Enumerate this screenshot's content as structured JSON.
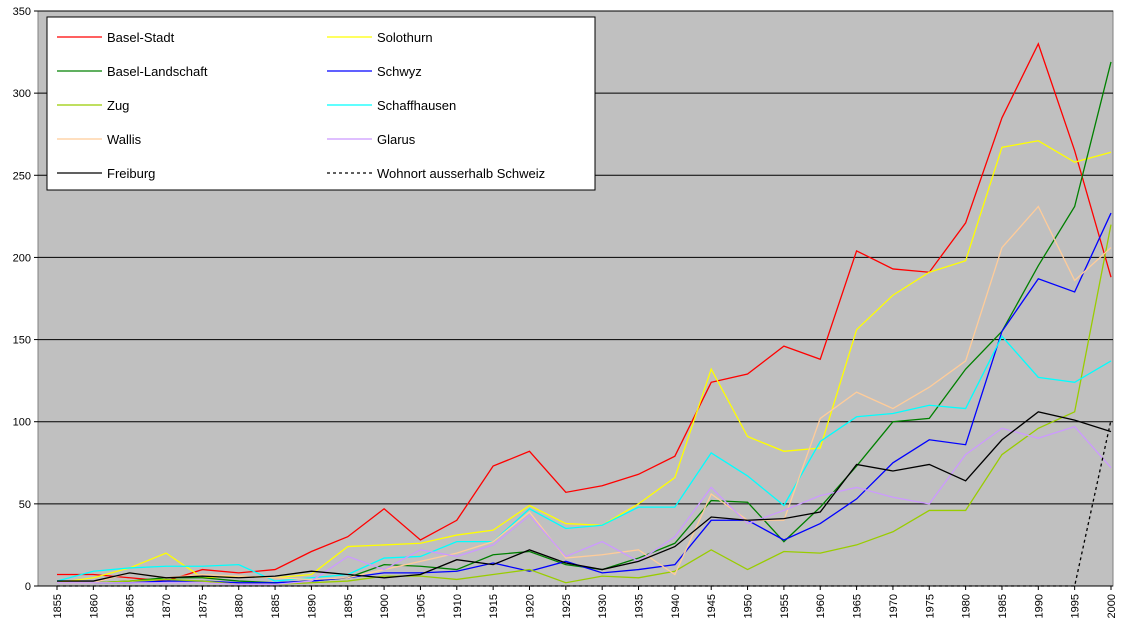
{
  "chart_data": {
    "type": "line",
    "categories": [
      "1855",
      "1860",
      "1865",
      "1870",
      "1875",
      "1880",
      "1885",
      "1890",
      "1895",
      "1900",
      "1905",
      "1910",
      "1915",
      "1920",
      "1925",
      "1930",
      "1935",
      "1940",
      "1945",
      "1950",
      "1955",
      "1960",
      "1965",
      "1970",
      "1975",
      "1980",
      "1985",
      "1990",
      "1995",
      "2000"
    ],
    "ylim": [
      0,
      350
    ],
    "yticks": [
      0,
      50,
      100,
      150,
      200,
      250,
      300,
      350
    ],
    "grid": true,
    "legend": "top-left",
    "series": [
      {
        "name": "Basel-Stadt",
        "color": "#ff0000",
        "values": [
          7,
          7,
          5,
          3,
          10,
          8,
          10,
          21,
          30,
          47,
          28,
          40,
          73,
          82,
          57,
          61,
          68,
          79,
          124,
          129,
          146,
          138,
          204,
          193,
          191,
          221,
          285,
          330,
          265,
          188
        ]
      },
      {
        "name": "Solothurn",
        "color": "#ffff00",
        "values": [
          2,
          5,
          11,
          20,
          5,
          6,
          5,
          7,
          24,
          25,
          26,
          31,
          34,
          49,
          38,
          37,
          50,
          66,
          132,
          91,
          82,
          84,
          156,
          177,
          191,
          198,
          267,
          271,
          258,
          264
        ]
      },
      {
        "name": "Basel-Landschaft",
        "color": "#008000",
        "values": [
          2,
          2,
          3,
          5,
          5,
          3,
          2,
          3,
          5,
          13,
          12,
          10,
          19,
          21,
          13,
          10,
          17,
          26,
          52,
          51,
          27,
          48,
          73,
          100,
          102,
          132,
          155,
          195,
          231,
          319
        ]
      },
      {
        "name": "Schwyz",
        "color": "#0000ff",
        "values": [
          2,
          2,
          2,
          3,
          3,
          2,
          2,
          3,
          5,
          8,
          8,
          9,
          14,
          9,
          15,
          8,
          10,
          13,
          40,
          40,
          28,
          38,
          53,
          75,
          89,
          86,
          155,
          187,
          179,
          227
        ]
      },
      {
        "name": "Zug",
        "color": "#99cc00",
        "values": [
          2,
          2,
          3,
          4,
          3,
          1,
          1,
          2,
          3,
          6,
          6,
          4,
          7,
          10,
          2,
          6,
          5,
          9,
          22,
          10,
          21,
          20,
          25,
          33,
          46,
          46,
          80,
          96,
          106,
          220
        ]
      },
      {
        "name": "Schaffhausen",
        "color": "#00ffff",
        "values": [
          3,
          9,
          11,
          12,
          12,
          13,
          3,
          5,
          7,
          17,
          18,
          27,
          27,
          47,
          35,
          37,
          48,
          48,
          81,
          67,
          49,
          88,
          103,
          105,
          110,
          108,
          152,
          127,
          124,
          137
        ]
      },
      {
        "name": "Wallis",
        "color": "#ffcc99",
        "values": [
          2,
          2,
          8,
          5,
          7,
          6,
          5,
          4,
          5,
          10,
          15,
          20,
          27,
          45,
          17,
          19,
          22,
          7,
          56,
          40,
          40,
          102,
          118,
          108,
          121,
          137,
          206,
          231,
          186,
          206
        ]
      },
      {
        "name": "Glarus",
        "color": "#cc99ff",
        "values": [
          2,
          2,
          2,
          2,
          2,
          1,
          1,
          3,
          18,
          10,
          22,
          18,
          25,
          43,
          18,
          27,
          15,
          30,
          60,
          38,
          46,
          55,
          60,
          54,
          50,
          80,
          96,
          90,
          97,
          72
        ]
      },
      {
        "name": "Freiburg",
        "color": "#000000",
        "values": [
          3,
          3,
          8,
          5,
          6,
          5,
          6,
          9,
          7,
          5,
          7,
          16,
          13,
          22,
          14,
          10,
          15,
          24,
          42,
          40,
          41,
          45,
          74,
          70,
          74,
          64,
          89,
          106,
          101,
          94
        ]
      },
      {
        "name": "Wohnort ausserhalb Schweiz",
        "color": "#000000",
        "line_style": "dotted",
        "values": [
          0,
          0,
          0,
          0,
          0,
          0,
          0,
          0,
          0,
          0,
          0,
          0,
          0,
          0,
          0,
          0,
          0,
          0,
          0,
          0,
          0,
          0,
          0,
          0,
          0,
          0,
          0,
          0,
          0,
          101
        ]
      }
    ]
  }
}
